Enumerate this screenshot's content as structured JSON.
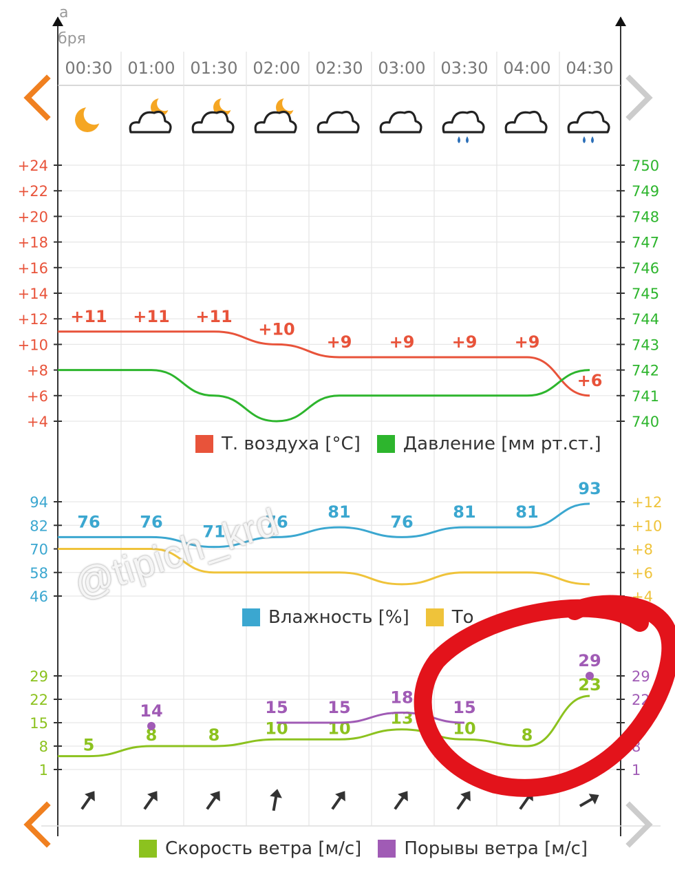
{
  "header": {
    "month_top": "а",
    "month_bottom": "бря",
    "times": [
      "00:30",
      "01:00",
      "01:30",
      "02:00",
      "02:30",
      "03:00",
      "03:30",
      "04:00",
      "04:30"
    ],
    "weather_icons": [
      "moon-icon",
      "cloud-moon-icon",
      "cloud-moon-icon",
      "cloud-moon-icon",
      "cloud-icon",
      "cloud-icon",
      "cloud-rain-icon",
      "cloud-icon",
      "cloud-rain-icon"
    ]
  },
  "nav": {
    "prev_label": "previous",
    "next_label": "next"
  },
  "colors": {
    "temperature": "#e8533a",
    "pressure": "#2db52d",
    "humidity": "#3ba7d0",
    "dewpoint": "#efc33a",
    "wind_speed": "#8cc21f",
    "gusts": "#a05bb5",
    "arrows": "#333333",
    "nav_orange": "#f08020",
    "nav_grey": "#cccccc",
    "annotation": "#e3131b"
  },
  "watermark": "@tipich_krd",
  "chart_data": [
    {
      "type": "line",
      "x": [
        "00:30",
        "01:00",
        "01:30",
        "02:00",
        "02:30",
        "03:00",
        "03:30",
        "04:00",
        "04:30"
      ],
      "series": [
        {
          "name": "Т. воздуха [°С]",
          "axis": "left",
          "values": [
            11,
            11,
            11,
            10,
            9,
            9,
            9,
            9,
            6
          ],
          "labels": [
            "+11",
            "+11",
            "+11",
            "+10",
            "+9",
            "+9",
            "+9",
            "+9",
            "+6"
          ]
        },
        {
          "name": "Давление [мм рт.ст.]",
          "axis": "right",
          "values": [
            742,
            742,
            741,
            740,
            741,
            741,
            741,
            741,
            742
          ]
        }
      ],
      "left_axis": {
        "ylim": [
          4,
          24
        ],
        "ticks": [
          "+24",
          "+22",
          "+20",
          "+18",
          "+16",
          "+14",
          "+12",
          "+10",
          "+8",
          "+6",
          "+4"
        ]
      },
      "right_axis": {
        "ylim": [
          740,
          750
        ],
        "ticks": [
          "750",
          "749",
          "748",
          "747",
          "746",
          "745",
          "744",
          "743",
          "742",
          "741",
          "740"
        ]
      },
      "legend": [
        "Т. воздуха [°С]",
        "Давление [мм рт.ст.]"
      ],
      "grid": true
    },
    {
      "type": "line",
      "x": [
        "00:30",
        "01:00",
        "01:30",
        "02:00",
        "02:30",
        "03:00",
        "03:30",
        "04:00",
        "04:30"
      ],
      "series": [
        {
          "name": "Влажность [%]",
          "axis": "left",
          "values": [
            76,
            76,
            71,
            76,
            81,
            76,
            81,
            81,
            93
          ],
          "labels": [
            "76",
            "76",
            "71",
            "76",
            "81",
            "76",
            "81",
            "81",
            "93"
          ]
        },
        {
          "name": "Т. точки росы",
          "axis": "right",
          "values": [
            8,
            8,
            6,
            6,
            6,
            5,
            6,
            6,
            5
          ]
        }
      ],
      "left_axis": {
        "ylim": [
          46,
          94
        ],
        "ticks": [
          "94",
          "82",
          "70",
          "58",
          "46"
        ]
      },
      "right_axis": {
        "ylim": [
          4,
          12
        ],
        "ticks": [
          "+12",
          "+10",
          "+8",
          "+6",
          "+4"
        ]
      },
      "legend": [
        "Влажность [%]",
        "То"
      ],
      "grid": true
    },
    {
      "type": "line",
      "x": [
        "00:30",
        "01:00",
        "01:30",
        "02:00",
        "02:30",
        "03:00",
        "03:30",
        "04:00",
        "04:30"
      ],
      "series": [
        {
          "name": "Скорость ветра [м/с]",
          "axis": "left",
          "values": [
            5,
            8,
            8,
            10,
            10,
            13,
            10,
            8,
            23
          ],
          "labels": [
            "5",
            "8",
            "8",
            "10",
            "10",
            "13",
            "10",
            "8",
            "23"
          ]
        },
        {
          "name": "Порывы ветра [м/с]",
          "axis": "left",
          "values": [
            null,
            14,
            null,
            15,
            15,
            18,
            15,
            null,
            29
          ],
          "labels": [
            "",
            "14",
            "",
            "15",
            "15",
            "18",
            "15",
            "",
            "29"
          ]
        }
      ],
      "left_axis": {
        "ylim": [
          1,
          29
        ],
        "ticks": [
          "29",
          "22",
          "15",
          "8",
          "1"
        ]
      },
      "right_axis": {
        "ylim": [
          1,
          29
        ],
        "ticks": [
          "29",
          "22",
          "",
          "8",
          "1"
        ]
      },
      "wind_direction_deg": [
        35,
        35,
        35,
        10,
        35,
        35,
        35,
        35,
        60
      ],
      "legend": [
        "Скорость ветра [м/с]",
        "Порывы ветра [м/с]"
      ],
      "grid": true
    }
  ]
}
